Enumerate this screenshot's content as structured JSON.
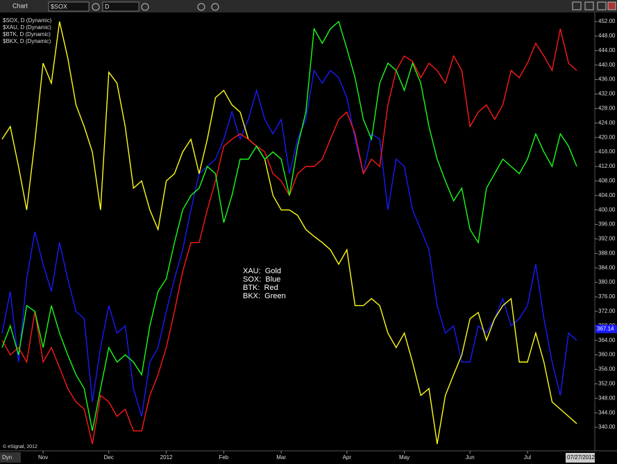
{
  "window": {
    "title": "Chart",
    "symbol": "$SOX",
    "interval": "D"
  },
  "footer": {
    "copyright": "© eSignal, 2012",
    "mode": "Dyn",
    "date": "07/27/2012"
  },
  "chart_data": {
    "type": "line",
    "categories": [
      null,
      null,
      null,
      null,
      null,
      "Nov",
      null,
      null,
      null,
      null,
      null,
      null,
      null,
      "Dec",
      null,
      null,
      null,
      null,
      null,
      null,
      "2012",
      null,
      null,
      null,
      null,
      null,
      null,
      "Feb",
      null,
      null,
      null,
      null,
      null,
      null,
      "Mar",
      null,
      null,
      null,
      null,
      null,
      null,
      null,
      "Apr",
      null,
      null,
      null,
      null,
      null,
      null,
      "May",
      null,
      null,
      null,
      null,
      null,
      null,
      null,
      "Jun",
      null,
      null,
      null,
      null,
      null,
      null,
      "Jul",
      null,
      null,
      null,
      null,
      null,
      null
    ],
    "series": [
      {
        "name": "$SOX, D (Dynamic)",
        "color": "#1a1aff",
        "values": [
          366,
          377.5,
          358,
          381,
          394,
          385,
          377.5,
          391,
          381,
          372,
          370,
          347,
          362,
          373.6,
          366,
          368,
          350.7,
          343,
          358,
          362,
          372,
          381,
          389,
          400,
          410,
          412,
          414,
          419.5,
          427,
          419.5,
          425,
          433,
          425,
          421,
          425,
          410,
          419.5,
          425,
          438.5,
          435,
          438.5,
          436.5,
          431,
          419.5,
          410,
          421,
          419.5,
          400,
          414,
          412,
          400,
          394.6,
          389,
          373.6,
          366,
          368,
          358,
          358,
          368,
          366,
          370,
          375.5,
          368,
          370,
          373.6,
          385,
          370,
          358,
          348.8,
          366,
          364
        ]
      },
      {
        "name": "$XAU, D (Dynamic)",
        "color": "#ffff1a",
        "values": [
          419.5,
          423,
          412,
          400,
          419,
          440.5,
          435,
          452,
          442,
          429,
          423,
          416,
          400,
          438,
          435,
          423,
          406,
          408,
          400,
          394.6,
          408,
          410,
          416,
          419.5,
          410,
          419.5,
          431,
          433,
          429,
          427,
          419.5,
          417.6,
          414,
          404,
          400,
          400,
          398.5,
          394.6,
          392.7,
          391,
          389,
          385,
          389,
          373.6,
          373.6,
          375.5,
          373.6,
          366,
          362,
          366,
          358,
          348.8,
          350.7,
          335.4,
          348.8,
          354.5,
          360,
          370,
          371.7,
          364,
          370,
          373.6,
          375.5,
          358,
          358,
          366,
          358,
          347,
          345,
          343,
          341
        ]
      },
      {
        "name": "$BTK, D (Dynamic)",
        "color": "#ff1a1a",
        "values": [
          364,
          360,
          362,
          358,
          372,
          358,
          362,
          356.5,
          350.7,
          347,
          345,
          335.4,
          348.8,
          347,
          343,
          345,
          339,
          339,
          348.8,
          354.5,
          362,
          372,
          383,
          391,
          391,
          400,
          408,
          417.6,
          419.5,
          421,
          419.5,
          417.6,
          416,
          410,
          408,
          404,
          410,
          412,
          412,
          414,
          419.5,
          425,
          427,
          421,
          410,
          414,
          412,
          429,
          438.5,
          442.5,
          441,
          436.5,
          440.5,
          438.5,
          435,
          442.5,
          438.5,
          423,
          427,
          429,
          425,
          429,
          438.5,
          436.5,
          440.5,
          446,
          442.5,
          438.5,
          450,
          440.5,
          438.5
        ]
      },
      {
        "name": "$BKX, D (Dynamic)",
        "color": "#1aff1a",
        "values": [
          362,
          368,
          360,
          373.6,
          372,
          362,
          373.6,
          366,
          360,
          354.5,
          350.7,
          339,
          350.7,
          362,
          358,
          360,
          358,
          354.5,
          368,
          377.5,
          381,
          391,
          400,
          404,
          406,
          412,
          410,
          396.5,
          404,
          414,
          414,
          417.6,
          414,
          416,
          414,
          404,
          417.6,
          427,
          450,
          446,
          450,
          452,
          444.5,
          436.5,
          425,
          419.5,
          435,
          440.5,
          438.5,
          433,
          440.5,
          435,
          423,
          414,
          408,
          402.5,
          406,
          394.6,
          391,
          406,
          410,
          414,
          412,
          410,
          414,
          421,
          416,
          412,
          421,
          417.6,
          412
        ]
      }
    ],
    "ylim": [
      333.5,
      454.5
    ],
    "yticks": [
      {
        "value": 340,
        "label": "340.00"
      },
      {
        "value": 344,
        "label": "344.00"
      },
      {
        "value": 348,
        "label": "348.00"
      },
      {
        "value": 352,
        "label": "352.00"
      },
      {
        "value": 356,
        "label": "356.00"
      },
      {
        "value": 360,
        "label": "360.00"
      },
      {
        "value": 364,
        "label": "364.00"
      },
      {
        "value": 368,
        "label": "368.00"
      },
      {
        "value": 372,
        "label": "372.00"
      },
      {
        "value": 376,
        "label": "376.00"
      },
      {
        "value": 380,
        "label": "380.00"
      },
      {
        "value": 384,
        "label": "384.00"
      },
      {
        "value": 388,
        "label": "388.00"
      },
      {
        "value": 392,
        "label": "392.00"
      },
      {
        "value": 396,
        "label": "396.00"
      },
      {
        "value": 400,
        "label": "400.00"
      },
      {
        "value": 404,
        "label": "404.00"
      },
      {
        "value": 408,
        "label": "408.00"
      },
      {
        "value": 412,
        "label": "412.00"
      },
      {
        "value": 416,
        "label": "416.00"
      },
      {
        "value": 420,
        "label": "420.00"
      },
      {
        "value": 424,
        "label": "424.00"
      },
      {
        "value": 428,
        "label": "428.00"
      },
      {
        "value": 432,
        "label": "432.00"
      },
      {
        "value": 436,
        "label": "436.00"
      },
      {
        "value": 440,
        "label": "440.00"
      },
      {
        "value": 444,
        "label": "444.00"
      },
      {
        "value": 448,
        "label": "448.00"
      },
      {
        "value": 452,
        "label": "452.00"
      }
    ],
    "last_value": 367.14,
    "annotations": [
      "XAU:  Gold",
      "SOX:  Blue",
      "BTK:  Red",
      "BKX:  Green"
    ]
  }
}
